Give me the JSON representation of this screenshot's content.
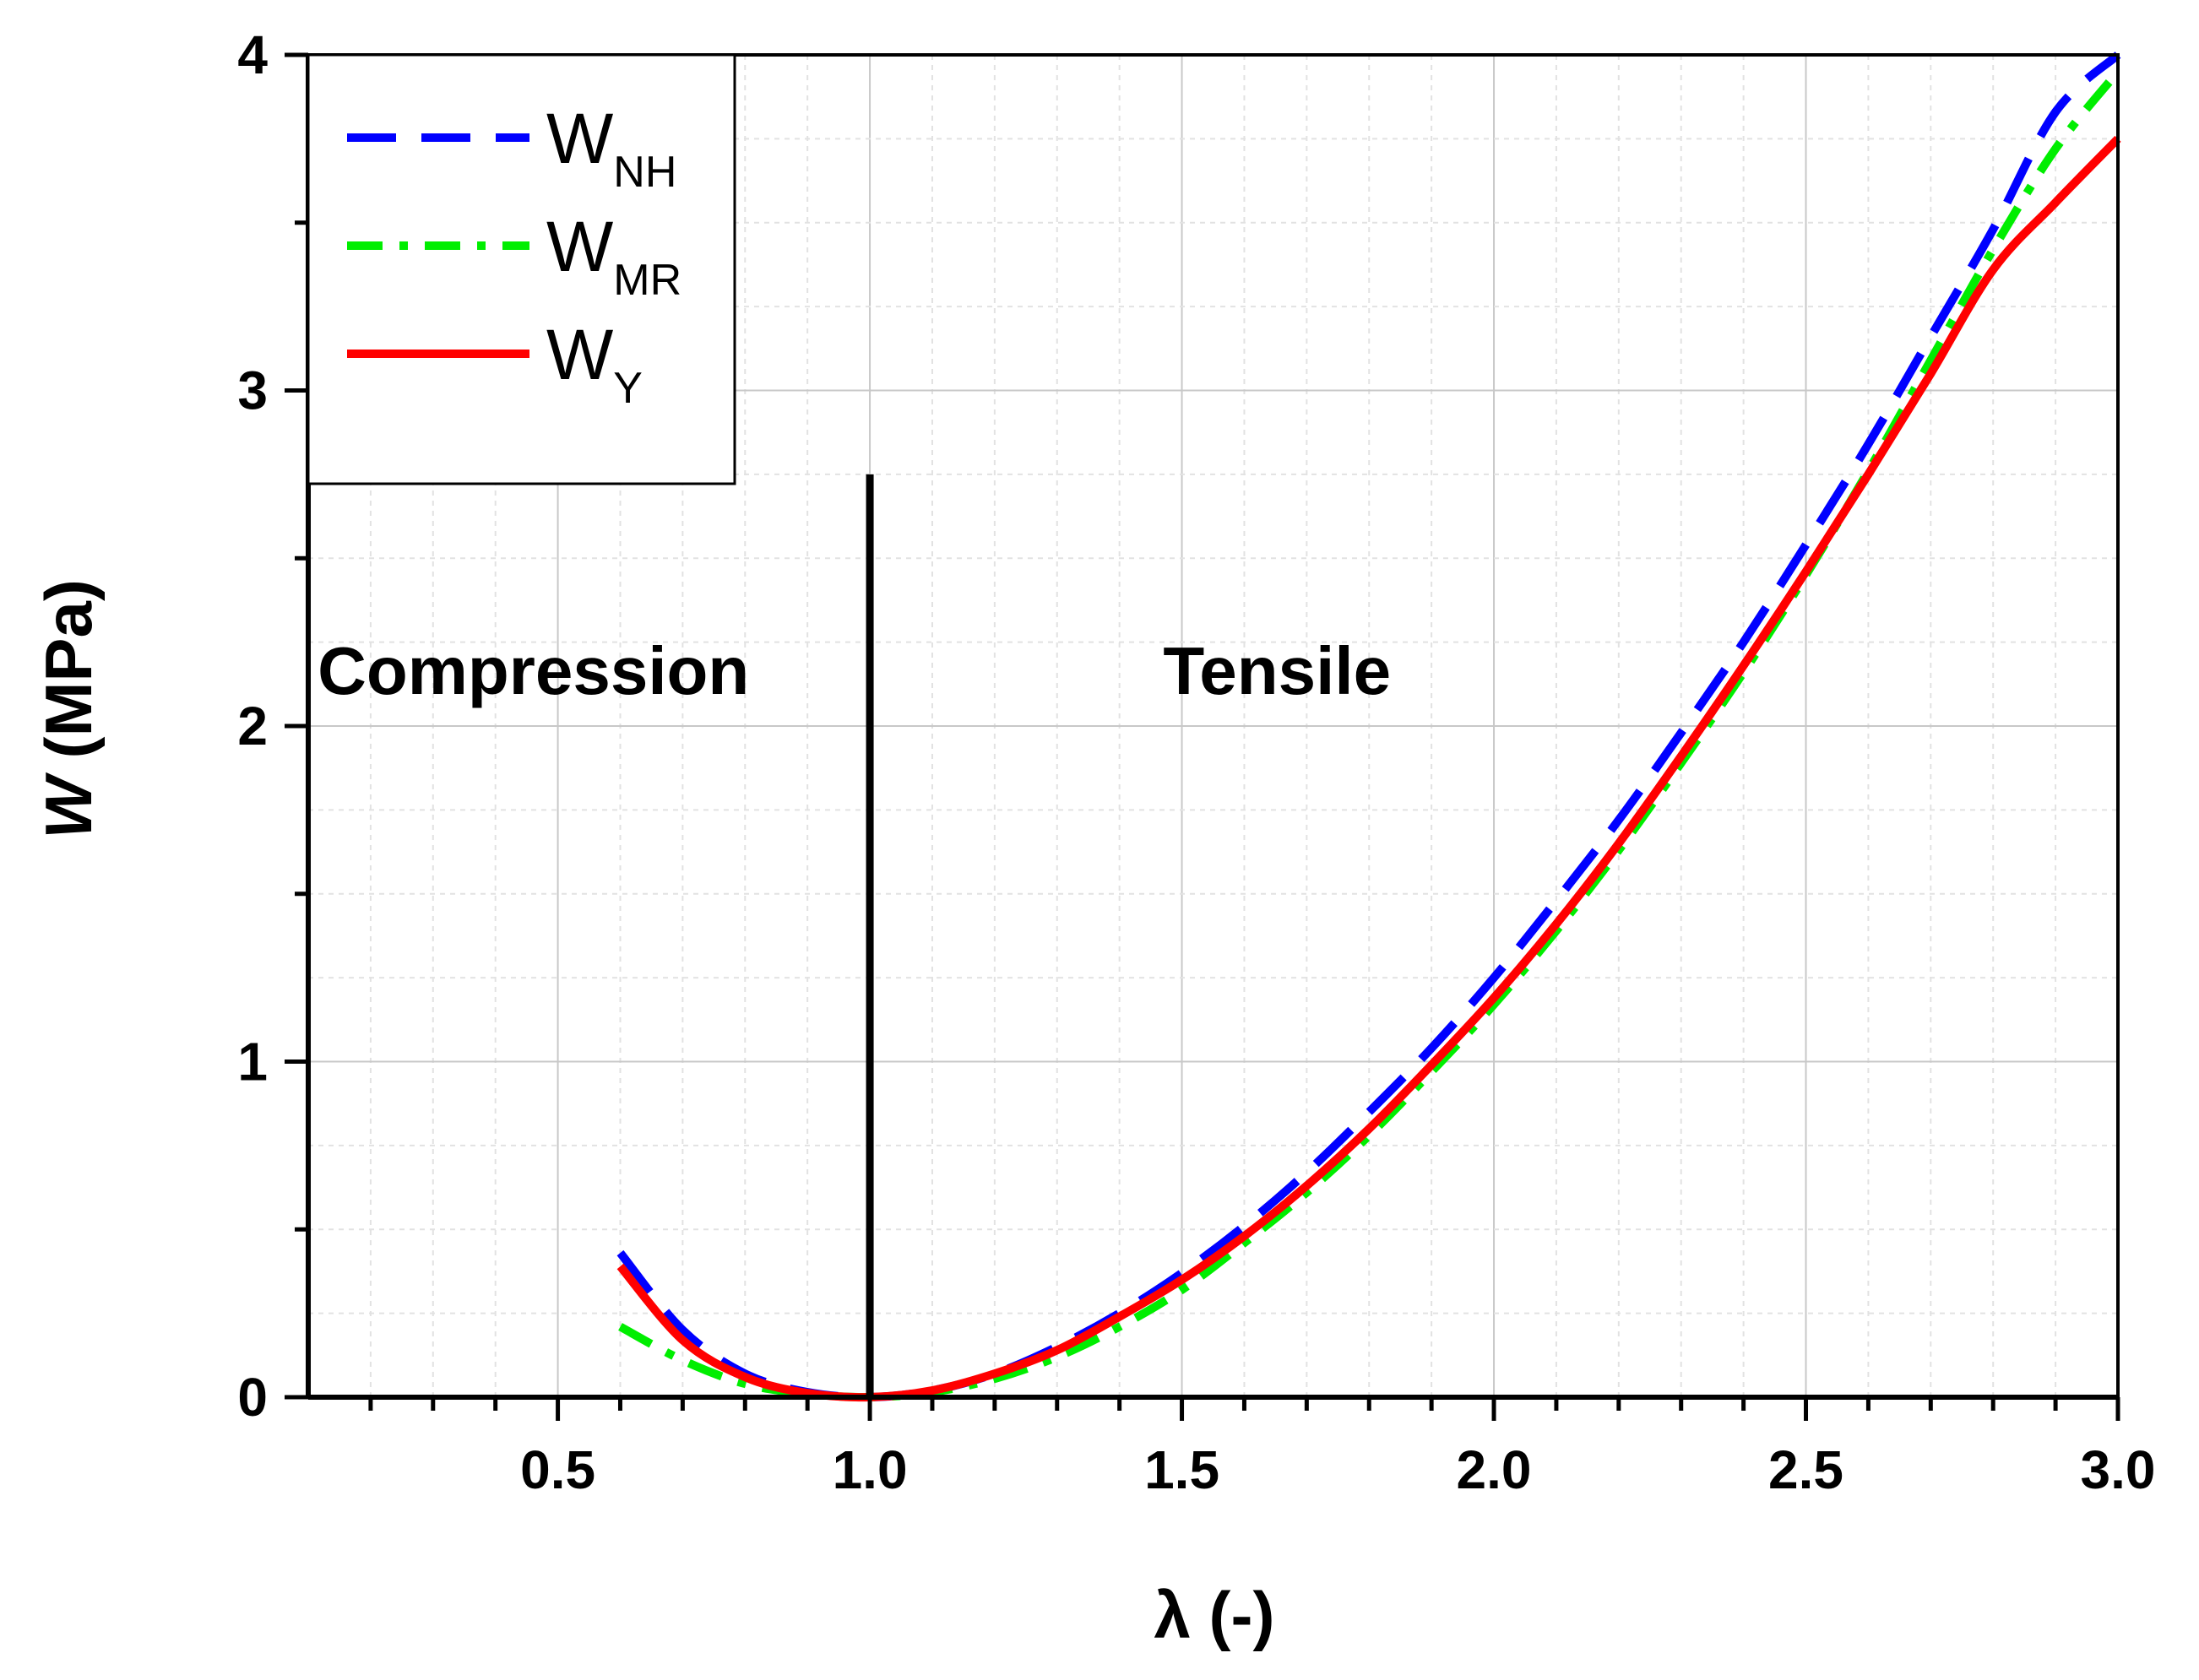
{
  "chart_data": {
    "type": "line",
    "title": "",
    "xlabel": "λ (-)",
    "ylabel_main": "W",
    "ylabel_unit": " (MPa)",
    "xlim": [
      0.1,
      3.0
    ],
    "ylim": [
      0,
      4
    ],
    "x_major_ticks": [
      0.5,
      1.0,
      1.5,
      2.0,
      2.5,
      3.0
    ],
    "x_tick_labels": [
      "0.5",
      "1.0",
      "1.5",
      "2.0",
      "2.5",
      "3.0"
    ],
    "y_major_ticks": [
      0,
      1,
      2,
      3,
      4
    ],
    "y_tick_labels": [
      "0",
      "1",
      "2",
      "3",
      "4"
    ],
    "grid": true,
    "legend_position": "top-left",
    "annotations": [
      {
        "id": "compression",
        "text": "Compression",
        "x": 0.115,
        "y": 2.05
      },
      {
        "id": "tensile",
        "text": "Tensile",
        "x": 1.47,
        "y": 2.05
      }
    ],
    "divider": {
      "x": 1.0,
      "y_from": 0,
      "y_to": 2.75
    },
    "series": [
      {
        "name": "W",
        "subscript": "NH",
        "color": "#0000ff",
        "style": "dashed",
        "x": [
          0.6,
          0.7,
          0.8,
          0.9,
          1.0,
          1.1,
          1.2,
          1.3,
          1.4,
          1.5,
          1.6,
          1.7,
          1.8,
          1.9,
          2.0,
          2.1,
          2.2,
          2.3,
          2.4,
          2.5,
          2.6,
          2.7,
          2.8,
          2.9,
          3.0
        ],
        "y": [
          0.43,
          0.2,
          0.07,
          0.015,
          0.0,
          0.02,
          0.07,
          0.15,
          0.25,
          0.37,
          0.51,
          0.67,
          0.85,
          1.04,
          1.25,
          1.48,
          1.72,
          1.98,
          2.25,
          2.54,
          2.84,
          3.16,
          3.48,
          3.83,
          4.0
        ]
      },
      {
        "name": "W",
        "subscript": "MR",
        "color": "#00ee00",
        "style": "dashdot",
        "x": [
          0.6,
          0.7,
          0.8,
          0.9,
          1.0,
          1.1,
          1.2,
          1.3,
          1.4,
          1.5,
          1.6,
          1.7,
          1.8,
          1.9,
          2.0,
          2.1,
          2.2,
          2.3,
          2.4,
          2.5,
          2.6,
          2.7,
          2.8,
          2.9,
          3.0
        ],
        "y": [
          0.21,
          0.11,
          0.04,
          0.01,
          0.0,
          0.015,
          0.055,
          0.12,
          0.21,
          0.32,
          0.46,
          0.61,
          0.78,
          0.97,
          1.17,
          1.39,
          1.63,
          1.89,
          2.16,
          2.45,
          2.76,
          3.09,
          3.42,
          3.72,
          3.95
        ]
      },
      {
        "name": "W",
        "subscript": "Y",
        "color": "#ff0000",
        "style": "solid",
        "x": [
          0.6,
          0.7,
          0.8,
          0.9,
          1.0,
          1.1,
          1.2,
          1.3,
          1.4,
          1.5,
          1.6,
          1.7,
          1.8,
          1.9,
          2.0,
          2.1,
          2.2,
          2.3,
          2.4,
          2.5,
          2.6,
          2.7,
          2.8,
          2.9,
          3.0
        ],
        "y": [
          0.39,
          0.17,
          0.06,
          0.012,
          0.0,
          0.02,
          0.07,
          0.14,
          0.24,
          0.35,
          0.48,
          0.63,
          0.8,
          0.99,
          1.19,
          1.41,
          1.65,
          1.91,
          2.18,
          2.46,
          2.75,
          3.05,
          3.36,
          3.56,
          3.75
        ]
      }
    ]
  }
}
